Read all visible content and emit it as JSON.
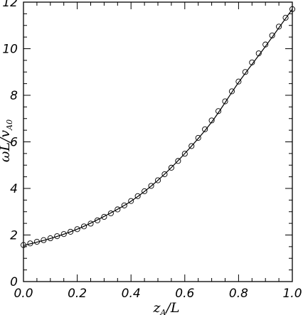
{
  "chart_data": {
    "type": "line",
    "title": "",
    "xlabel": "z_A/L",
    "xlabel_parts": {
      "main": "z",
      "sub": "A",
      "rest": "/L"
    },
    "ylabel": "ωL/v_A0",
    "ylabel_parts": {
      "main": "ωL/v",
      "sub": "A0"
    },
    "xlim": [
      0.0,
      1.0
    ],
    "ylim": [
      0,
      12
    ],
    "x_major_ticks": [
      0.0,
      0.2,
      0.4,
      0.6,
      0.8,
      1.0
    ],
    "x_tick_labels": [
      "0.0",
      "0.2",
      "0.4",
      "0.6",
      "0.8",
      "1.0"
    ],
    "y_major_ticks": [
      0,
      2,
      4,
      6,
      8,
      10,
      12
    ],
    "y_tick_labels": [
      "0",
      "2",
      "4",
      "6",
      "8",
      "10",
      "12"
    ],
    "grid": false,
    "legend": "none",
    "series": [
      {
        "style": "line",
        "color": "#000000",
        "x": [
          0.0,
          0.1,
          0.2,
          0.3,
          0.4,
          0.5,
          0.6,
          0.7,
          0.8,
          0.9,
          1.0
        ],
        "y": [
          1.55,
          1.85,
          2.25,
          2.8,
          3.45,
          4.35,
          5.5,
          6.85,
          8.55,
          10.1,
          11.7
        ]
      },
      {
        "style": "markers",
        "marker": "open-circle",
        "color": "#000000",
        "x": [
          0.0,
          0.025,
          0.05,
          0.075,
          0.1,
          0.125,
          0.15,
          0.175,
          0.2,
          0.225,
          0.25,
          0.275,
          0.3,
          0.325,
          0.35,
          0.375,
          0.4,
          0.425,
          0.45,
          0.475,
          0.5,
          0.525,
          0.55,
          0.575,
          0.6,
          0.625,
          0.65,
          0.675,
          0.7,
          0.725,
          0.75,
          0.775,
          0.8,
          0.825,
          0.85,
          0.875,
          0.9,
          0.925,
          0.95,
          0.975,
          1.0
        ],
        "y": [
          1.57,
          1.64,
          1.71,
          1.78,
          1.86,
          1.95,
          2.04,
          2.14,
          2.25,
          2.37,
          2.49,
          2.63,
          2.78,
          2.93,
          3.1,
          3.27,
          3.46,
          3.67,
          3.88,
          4.11,
          4.35,
          4.61,
          4.89,
          5.18,
          5.49,
          5.82,
          6.17,
          6.54,
          6.92,
          7.32,
          7.74,
          8.17,
          8.59,
          9.0,
          9.41,
          9.8,
          10.18,
          10.57,
          10.95,
          11.33,
          11.7
        ]
      }
    ]
  }
}
